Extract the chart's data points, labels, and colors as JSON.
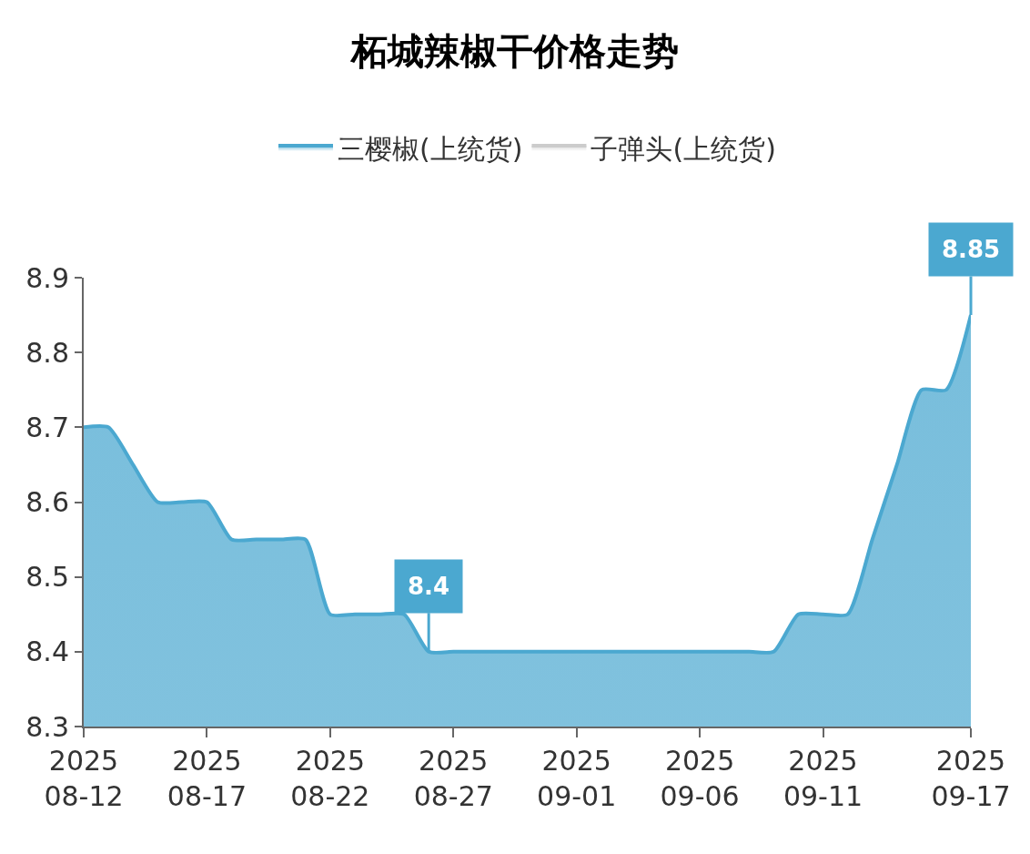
{
  "chart_data": {
    "type": "area",
    "title": "柘城辣椒干价格走势",
    "legend": "top",
    "grid": false,
    "marker": "none",
    "line_style": "solid",
    "x": [
      "2025-08-12",
      "2025-08-13",
      "2025-08-14",
      "2025-08-15",
      "2025-08-16",
      "2025-08-17",
      "2025-08-18",
      "2025-08-19",
      "2025-08-20",
      "2025-08-21",
      "2025-08-22",
      "2025-08-23",
      "2025-08-24",
      "2025-08-25",
      "2025-08-26",
      "2025-08-27",
      "2025-08-28",
      "2025-08-29",
      "2025-08-30",
      "2025-08-31",
      "2025-09-01",
      "2025-09-02",
      "2025-09-03",
      "2025-09-04",
      "2025-09-05",
      "2025-09-06",
      "2025-09-07",
      "2025-09-08",
      "2025-09-09",
      "2025-09-10",
      "2025-09-11",
      "2025-09-12",
      "2025-09-13",
      "2025-09-14",
      "2025-09-15",
      "2025-09-16",
      "2025-09-17"
    ],
    "series": [
      {
        "name": "三樱椒(上统货)",
        "color": "#4ba8d0",
        "values": [
          8.7,
          8.7,
          8.65,
          8.6,
          8.6,
          8.6,
          8.55,
          8.55,
          8.55,
          8.55,
          8.45,
          8.45,
          8.45,
          8.45,
          8.4,
          8.4,
          8.4,
          8.4,
          8.4,
          8.4,
          8.4,
          8.4,
          8.4,
          8.4,
          8.4,
          8.4,
          8.4,
          8.4,
          8.4,
          8.45,
          8.45,
          8.45,
          8.55,
          8.65,
          8.75,
          8.75,
          8.85
        ]
      },
      {
        "name": "子弹头(上统货)",
        "color": "#cccccc",
        "values": [
          null,
          null,
          null,
          null,
          null,
          null,
          null,
          null,
          null,
          null,
          null,
          null,
          null,
          null,
          null,
          null,
          null,
          null,
          null,
          null,
          null,
          null,
          null,
          null,
          null,
          null,
          null,
          null,
          null,
          null,
          null,
          null,
          null,
          null,
          null,
          null,
          null
        ]
      }
    ],
    "ylim": [
      8.3,
      8.9
    ],
    "yticks": [
      8.3,
      8.4,
      8.5,
      8.6,
      8.7,
      8.8,
      8.9
    ],
    "xlim": [
      "2025-08-12",
      "2025-09-17"
    ],
    "xticks": [
      {
        "value": "2025-08-12",
        "label": "2025\n08-12"
      },
      {
        "value": "2025-08-17",
        "label": "2025\n08-17"
      },
      {
        "value": "2025-08-22",
        "label": "2025\n08-22"
      },
      {
        "value": "2025-08-27",
        "label": "2025\n08-27"
      },
      {
        "value": "2025-09-01",
        "label": "2025\n09-01"
      },
      {
        "value": "2025-09-06",
        "label": "2025\n09-06"
      },
      {
        "value": "2025-09-11",
        "label": "2025\n09-11"
      },
      {
        "value": "2025-09-17",
        "label": "2025\n09-17"
      }
    ],
    "annotations": [
      {
        "text": "8.4",
        "x": "2025-08-26",
        "y": 8.4
      },
      {
        "text": "8.85",
        "x": "2025-09-17",
        "y": 8.85
      }
    ]
  }
}
